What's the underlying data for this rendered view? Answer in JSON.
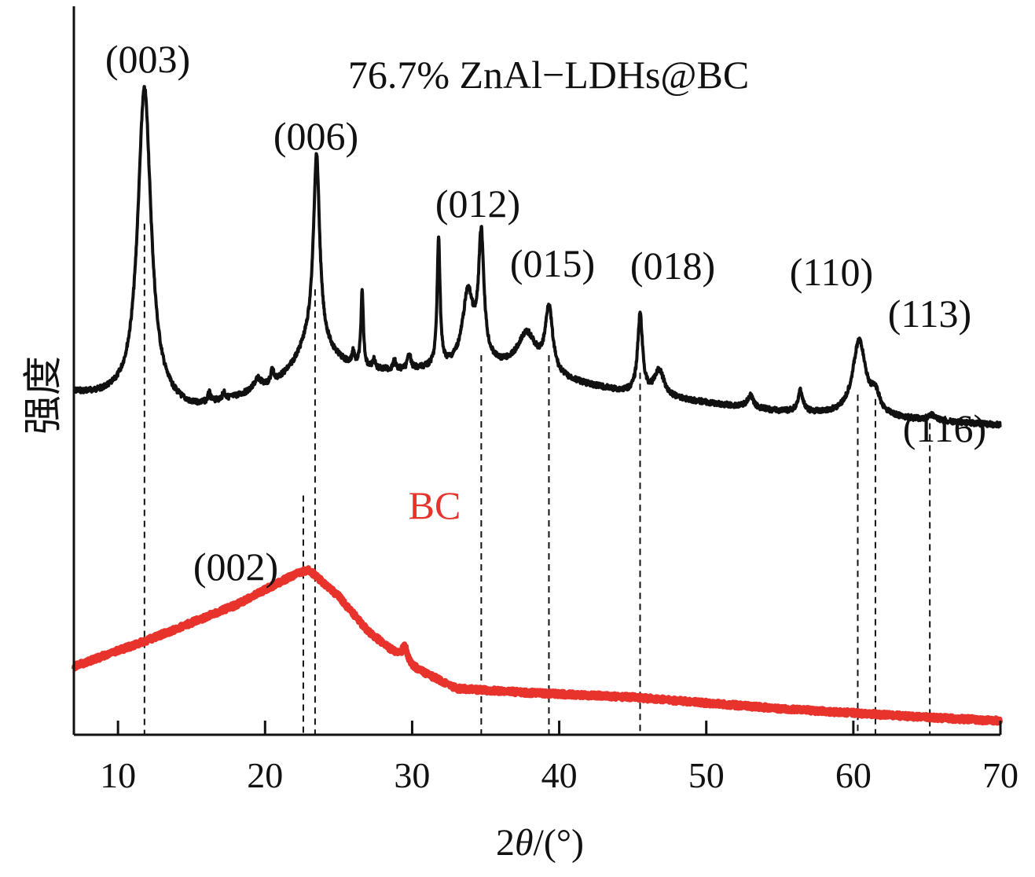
{
  "chart_data": {
    "type": "line",
    "title": "",
    "xlabel": "2θ/(°)",
    "xlabel_prefix": "2",
    "xlabel_theta": "θ",
    "xlabel_suffix": "/(°)",
    "ylabel": "强度",
    "xlim": [
      7,
      70
    ],
    "xticks": [
      10,
      20,
      30,
      40,
      50,
      60,
      70
    ],
    "y_ticks_shown": false,
    "grid": false,
    "series": [
      {
        "name": "76.7% ZnAl−LDHs@BC",
        "color": "#111111",
        "baseline": [
          [
            7,
            0.45
          ],
          [
            15,
            0.47
          ],
          [
            25,
            0.43
          ],
          [
            35,
            0.42
          ],
          [
            45,
            0.45
          ],
          [
            55,
            0.47
          ],
          [
            65,
            0.48
          ],
          [
            70,
            0.485
          ]
        ],
        "peaks": [
          {
            "x": 11.8,
            "height": 0.36,
            "width": 0.55
          },
          {
            "x": 16.2,
            "height": 0.01,
            "width": 0.1
          },
          {
            "x": 17.2,
            "height": 0.008,
            "width": 0.1
          },
          {
            "x": 19.5,
            "height": 0.012,
            "width": 0.3
          },
          {
            "x": 20.5,
            "height": 0.016,
            "width": 0.1
          },
          {
            "x": 23.3,
            "height": 0.05,
            "width": 1.4
          },
          {
            "x": 23.5,
            "height": 0.21,
            "width": 0.25
          },
          {
            "x": 26.0,
            "height": 0.015,
            "width": 0.1
          },
          {
            "x": 26.6,
            "height": 0.085,
            "width": 0.1
          },
          {
            "x": 27.4,
            "height": 0.01,
            "width": 0.1
          },
          {
            "x": 28.8,
            "height": 0.01,
            "width": 0.1
          },
          {
            "x": 29.8,
            "height": 0.018,
            "width": 0.12
          },
          {
            "x": 31.8,
            "height": 0.145,
            "width": 0.12
          },
          {
            "x": 33.8,
            "height": 0.082,
            "width": 0.45
          },
          {
            "x": 34.7,
            "height": 0.14,
            "width": 0.22
          },
          {
            "x": 37.8,
            "height": 0.045,
            "width": 0.8
          },
          {
            "x": 39.3,
            "height": 0.075,
            "width": 0.3
          },
          {
            "x": 45.5,
            "height": 0.09,
            "width": 0.2
          },
          {
            "x": 46.8,
            "height": 0.03,
            "width": 0.4
          },
          {
            "x": 53.0,
            "height": 0.014,
            "width": 0.25
          },
          {
            "x": 56.4,
            "height": 0.024,
            "width": 0.2
          },
          {
            "x": 60.4,
            "height": 0.085,
            "width": 0.55
          },
          {
            "x": 61.5,
            "height": 0.02,
            "width": 0.35
          },
          {
            "x": 65.3,
            "height": 0.006,
            "width": 0.3
          }
        ]
      },
      {
        "name": "BC",
        "color": "#e8332c",
        "baseline": [
          [
            7,
            0.76
          ],
          [
            12,
            0.73
          ],
          [
            18,
            0.69
          ],
          [
            22,
            0.655
          ],
          [
            23,
            0.65
          ],
          [
            25,
            0.68
          ],
          [
            27,
            0.72
          ],
          [
            30,
            0.76
          ],
          [
            33,
            0.785
          ],
          [
            38,
            0.79
          ],
          [
            45,
            0.795
          ],
          [
            55,
            0.808
          ],
          [
            65,
            0.818
          ],
          [
            70,
            0.822
          ]
        ],
        "peaks": [
          {
            "x": 29.5,
            "height": 0.018,
            "width": 0.2
          }
        ]
      }
    ],
    "peak_labels": [
      {
        "text": "(003)",
        "x": 11.8
      },
      {
        "text": "(006)",
        "x": 23.4
      },
      {
        "text": "(012)",
        "x": 34.7
      },
      {
        "text": "(015)",
        "x": 39.3
      },
      {
        "text": "(018)",
        "x": 45.5
      },
      {
        "text": "(110)",
        "x": 60.3
      },
      {
        "text": "(113)",
        "x": 61.5
      },
      {
        "text": "(116)",
        "x": 65.2
      },
      {
        "text": "(002)",
        "x": 22.6
      }
    ],
    "reference_lines_x": [
      11.8,
      22.6,
      23.4,
      34.7,
      39.3,
      45.5,
      60.3,
      61.5,
      65.2
    ]
  }
}
